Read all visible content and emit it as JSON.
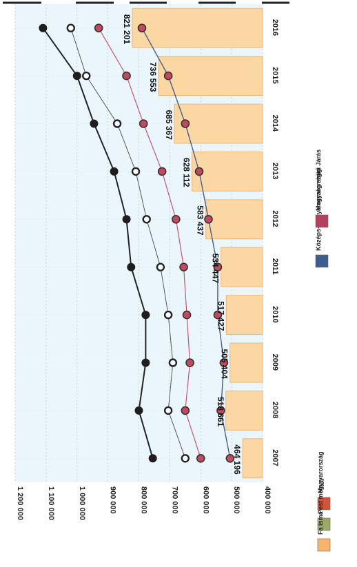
{
  "chart_data": {
    "type": "line",
    "orientation": "rotated-90-clockwise",
    "x": [
      "2007",
      "2008",
      "2009",
      "2010",
      "2011",
      "2012",
      "2013",
      "2014",
      "2015",
      "2016"
    ],
    "ylim": [
      400000,
      1200000
    ],
    "y_ticks": [
      "400 000",
      "500 000",
      "600 000",
      "700 000",
      "800 000",
      "900 000",
      "1 000 000",
      "1 100 000",
      "1 200 000"
    ],
    "bars": {
      "name": "Fa isma",
      "values": [
        464196,
        518661,
        505404,
        517427,
        534447,
        583437,
        628112,
        685367,
        736553,
        821201
      ]
    },
    "series": [
      {
        "name": "Nachhaltig Magyar Forintzer",
        "values": [
          755000,
          800000,
          778000,
          778000,
          825000,
          840000,
          880000,
          945000,
          1000000,
          1110000
        ]
      },
      {
        "name": "Magyar forintzag",
        "values": [
          650000,
          705000,
          690000,
          705000,
          730000,
          775000,
          810000,
          870000,
          970000,
          1020000
        ]
      },
      {
        "name": "Magyarországi Járás",
        "values": [
          600000,
          650000,
          635000,
          645000,
          655000,
          680000,
          725000,
          785000,
          840000,
          930000
        ]
      },
      {
        "name": "Magyar fönt",
        "values": [
          505000,
          535000,
          525000,
          545000,
          545000,
          575000,
          605000,
          650000,
          705000,
          790000
        ]
      }
    ],
    "data_labels": [
      "464 196",
      "518 661",
      "505 404",
      "517 427",
      "534 447",
      "583 437",
      "628 112",
      "685 367",
      "736 553",
      "821 201"
    ],
    "legend": {
      "placement": "bottom",
      "items": [
        {
          "label": "Magyarország",
          "color": "#d2553a"
        },
        {
          "label": "Pest megye",
          "color": "#9aa86a"
        },
        {
          "label": "Fa isma",
          "color": "#f7b46e"
        },
        {
          "label": "Középs-Magyarország régió",
          "color": "#3e5d8c"
        },
        {
          "label": "Magyarországi Járás",
          "color": "#b3405e"
        }
      ]
    },
    "colors": {
      "bar_fill": "#fbd7a4",
      "bar_stroke": "#efb47a",
      "plot_bg": "#eaf6fb",
      "line_dark": "#222222",
      "line_mid": "#555555",
      "line_pink": "#c9546e",
      "line_navy": "#4b5c88"
    }
  }
}
